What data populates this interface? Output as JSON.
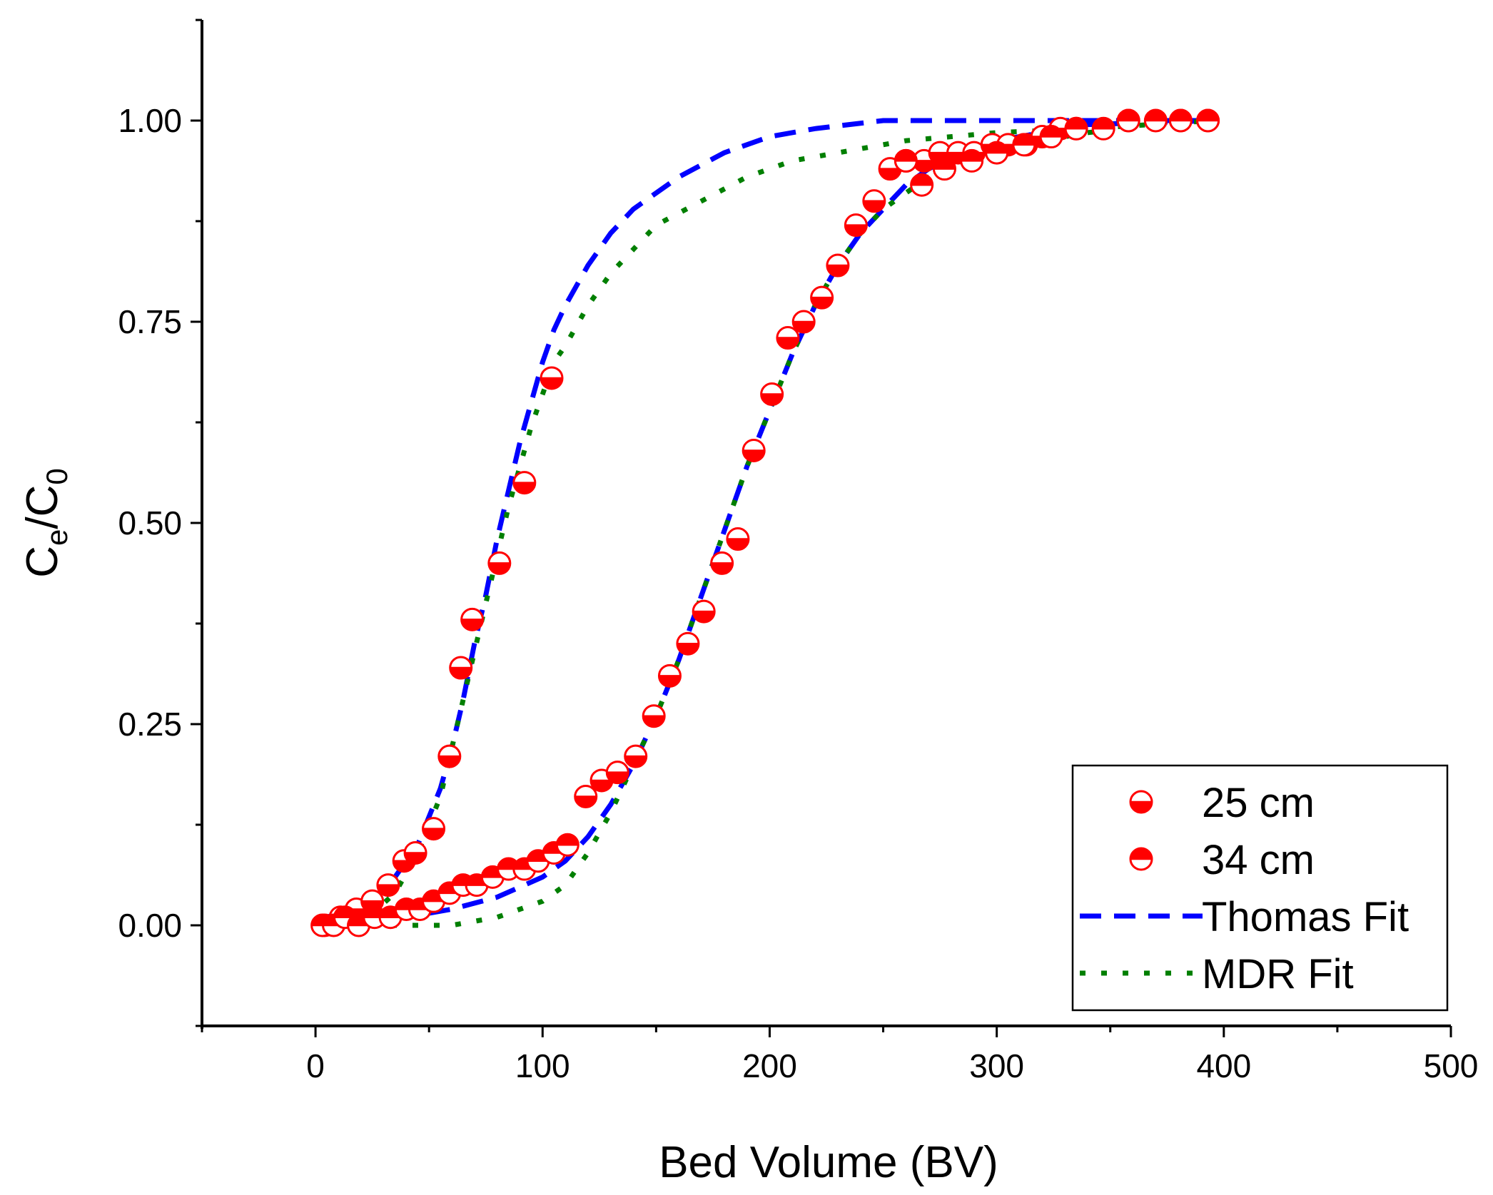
{
  "chart_data": {
    "type": "scatter",
    "xlabel": "Bed Volume (BV)",
    "ylabel_main": "C",
    "ylabel_sub1": "e",
    "ylabel_slash": "/C",
    "ylabel_sub2": "0",
    "xlim": [
      -50,
      500
    ],
    "ylim": [
      -0.125,
      1.125
    ],
    "xticks": [
      0,
      100,
      200,
      300,
      400,
      500
    ],
    "xtick_labels": [
      "0",
      "100",
      "200",
      "300",
      "400",
      "500"
    ],
    "yticks": [
      0.0,
      0.25,
      0.5,
      0.75,
      1.0
    ],
    "ytick_labels": [
      "0.00",
      "0.25",
      "0.50",
      "0.75",
      "1.00"
    ],
    "legend_position": "bottom-right",
    "series": [
      {
        "name": "25 cm",
        "marker": "half-filled-bottom",
        "color": "#ff0000",
        "x": [
          4,
          11,
          18,
          25,
          32,
          39,
          44,
          52,
          59,
          64,
          69,
          81,
          92,
          104,
          119,
          126,
          133,
          141,
          149,
          156,
          164,
          171,
          179,
          186,
          193,
          201,
          208,
          215,
          223,
          230,
          238,
          246,
          253,
          260,
          268,
          275,
          283,
          290,
          298,
          305,
          313,
          320,
          328,
          335,
          358,
          381,
          393
        ],
        "y": [
          0.0,
          0.01,
          0.02,
          0.03,
          0.05,
          0.08,
          0.09,
          0.12,
          0.21,
          0.32,
          0.38,
          0.45,
          0.55,
          0.68,
          0.16,
          0.18,
          0.19,
          0.21,
          0.26,
          0.31,
          0.35,
          0.39,
          0.45,
          0.48,
          0.59,
          0.66,
          0.73,
          0.75,
          0.78,
          0.82,
          0.87,
          0.9,
          0.94,
          0.95,
          0.95,
          0.96,
          0.96,
          0.96,
          0.97,
          0.97,
          0.97,
          0.98,
          0.99,
          0.99,
          1.0,
          1.0,
          1.0
        ]
      },
      {
        "name": "34 cm",
        "marker": "half-filled-top",
        "color": "#ff0000",
        "x": [
          3,
          8,
          13,
          19,
          26,
          33,
          40,
          46,
          52,
          59,
          65,
          71,
          78,
          85,
          92,
          98,
          105,
          111,
          260,
          267,
          277,
          289,
          300,
          312,
          324,
          335,
          347,
          358,
          370,
          381,
          393
        ],
        "y": [
          0.0,
          0.0,
          0.01,
          0.0,
          0.01,
          0.01,
          0.02,
          0.02,
          0.03,
          0.04,
          0.05,
          0.05,
          0.06,
          0.07,
          0.07,
          0.08,
          0.09,
          0.1,
          0.95,
          0.92,
          0.94,
          0.95,
          0.96,
          0.97,
          0.98,
          0.99,
          0.99,
          1.0,
          1.0,
          1.0,
          1.0
        ]
      },
      {
        "name": "Thomas Fit",
        "style": "dashed",
        "color": "#0000ff",
        "curves": [
          {
            "x": [
              5,
              15,
              25,
              35,
              45,
              55,
              60,
              65,
              70,
              75,
              80,
              85,
              90,
              95,
              100,
              105,
              110,
              120,
              130,
              140,
              150,
              160,
              180,
              200,
              220,
              250,
              280,
              320,
              360,
              395
            ],
            "y": [
              0.01,
              0.02,
              0.035,
              0.06,
              0.1,
              0.17,
              0.22,
              0.28,
              0.35,
              0.41,
              0.48,
              0.54,
              0.6,
              0.65,
              0.7,
              0.74,
              0.77,
              0.82,
              0.86,
              0.89,
              0.91,
              0.93,
              0.96,
              0.98,
              0.99,
              1.0,
              1.0,
              1.0,
              1.0,
              1.0
            ]
          },
          {
            "x": [
              5,
              20,
              40,
              60,
              80,
              100,
              110,
              120,
              130,
              140,
              150,
              160,
              170,
              180,
              190,
              200,
              210,
              220,
              230,
              240,
              250,
              260,
              270,
              285,
              300,
              320,
              340,
              395
            ],
            "y": [
              0.0,
              0.005,
              0.01,
              0.02,
              0.035,
              0.06,
              0.08,
              0.11,
              0.15,
              0.2,
              0.26,
              0.33,
              0.41,
              0.49,
              0.57,
              0.64,
              0.71,
              0.77,
              0.82,
              0.86,
              0.89,
              0.92,
              0.94,
              0.96,
              0.975,
              0.985,
              0.995,
              1.0
            ]
          }
        ]
      },
      {
        "name": "MDR Fit",
        "style": "dotted",
        "color": "#007f00",
        "curves": [
          {
            "x": [
              5,
              15,
              25,
              35,
              45,
              55,
              60,
              65,
              70,
              75,
              80,
              85,
              90,
              95,
              100,
              105,
              110,
              120,
              130,
              140,
              150,
              170,
              190,
              210,
              230,
              260,
              300,
              340,
              395
            ],
            "y": [
              0.0,
              0.005,
              0.015,
              0.04,
              0.09,
              0.16,
              0.22,
              0.28,
              0.34,
              0.4,
              0.46,
              0.52,
              0.57,
              0.62,
              0.66,
              0.7,
              0.72,
              0.77,
              0.81,
              0.84,
              0.87,
              0.9,
              0.93,
              0.95,
              0.96,
              0.975,
              0.985,
              0.99,
              1.0
            ]
          },
          {
            "x": [
              5,
              40,
              60,
              80,
              100,
              110,
              120,
              130,
              140,
              150,
              160,
              170,
              180,
              190,
              200,
              210,
              220,
              230,
              240,
              250,
              260,
              270,
              285,
              300,
              320,
              340,
              370,
              395
            ],
            "y": [
              0.0,
              0.0,
              0.0,
              0.01,
              0.03,
              0.05,
              0.09,
              0.14,
              0.2,
              0.26,
              0.33,
              0.41,
              0.49,
              0.57,
              0.64,
              0.71,
              0.77,
              0.82,
              0.86,
              0.89,
              0.91,
              0.93,
              0.95,
              0.965,
              0.975,
              0.985,
              0.995,
              1.0
            ]
          }
        ]
      }
    ]
  }
}
